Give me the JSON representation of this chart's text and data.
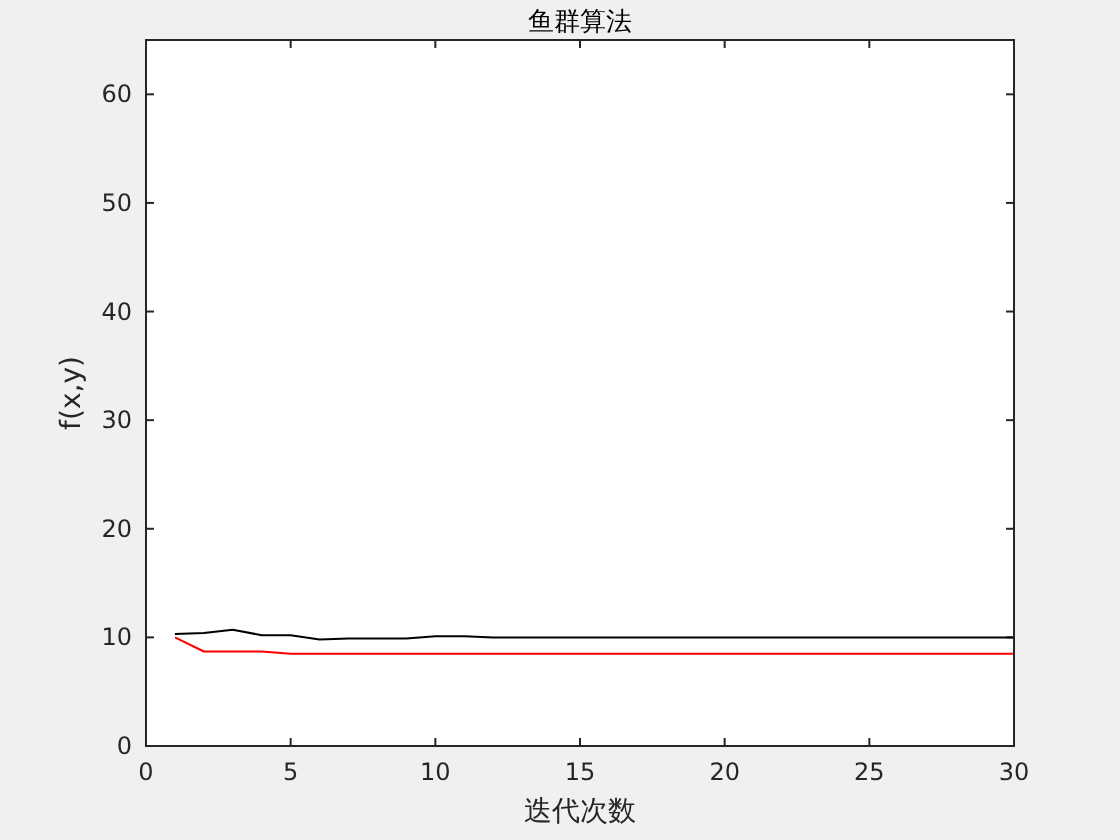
{
  "chart_data": {
    "type": "line",
    "title": "鱼群算法",
    "xlabel": "迭代次数",
    "ylabel": "f(x,y)",
    "xlim": [
      0,
      30
    ],
    "ylim": [
      0,
      65
    ],
    "xticks": [
      0,
      5,
      10,
      15,
      20,
      25,
      30
    ],
    "yticks": [
      0,
      10,
      20,
      30,
      40,
      50,
      60
    ],
    "x": [
      1,
      2,
      3,
      4,
      5,
      6,
      7,
      8,
      9,
      10,
      11,
      12,
      13,
      14,
      15,
      16,
      17,
      18,
      19,
      20,
      21,
      22,
      23,
      24,
      25,
      26,
      27,
      28,
      29,
      30
    ],
    "series": [
      {
        "color": "#000000",
        "values": [
          10.3,
          10.4,
          10.7,
          10.2,
          10.2,
          9.8,
          9.9,
          9.9,
          9.9,
          10.1,
          10.1,
          10.0,
          10.0,
          10.0,
          10.0,
          10.0,
          10.0,
          10.0,
          10.0,
          10.0,
          10.0,
          10.0,
          10.0,
          10.0,
          10.0,
          10.0,
          10.0,
          10.0,
          10.0,
          10.0
        ]
      },
      {
        "color": "#ff0000",
        "values": [
          10.0,
          8.7,
          8.7,
          8.7,
          8.5,
          8.5,
          8.5,
          8.5,
          8.5,
          8.5,
          8.5,
          8.5,
          8.5,
          8.5,
          8.5,
          8.5,
          8.5,
          8.5,
          8.5,
          8.5,
          8.5,
          8.5,
          8.5,
          8.5,
          8.5,
          8.5,
          8.5,
          8.5,
          8.5,
          8.5
        ]
      }
    ]
  }
}
